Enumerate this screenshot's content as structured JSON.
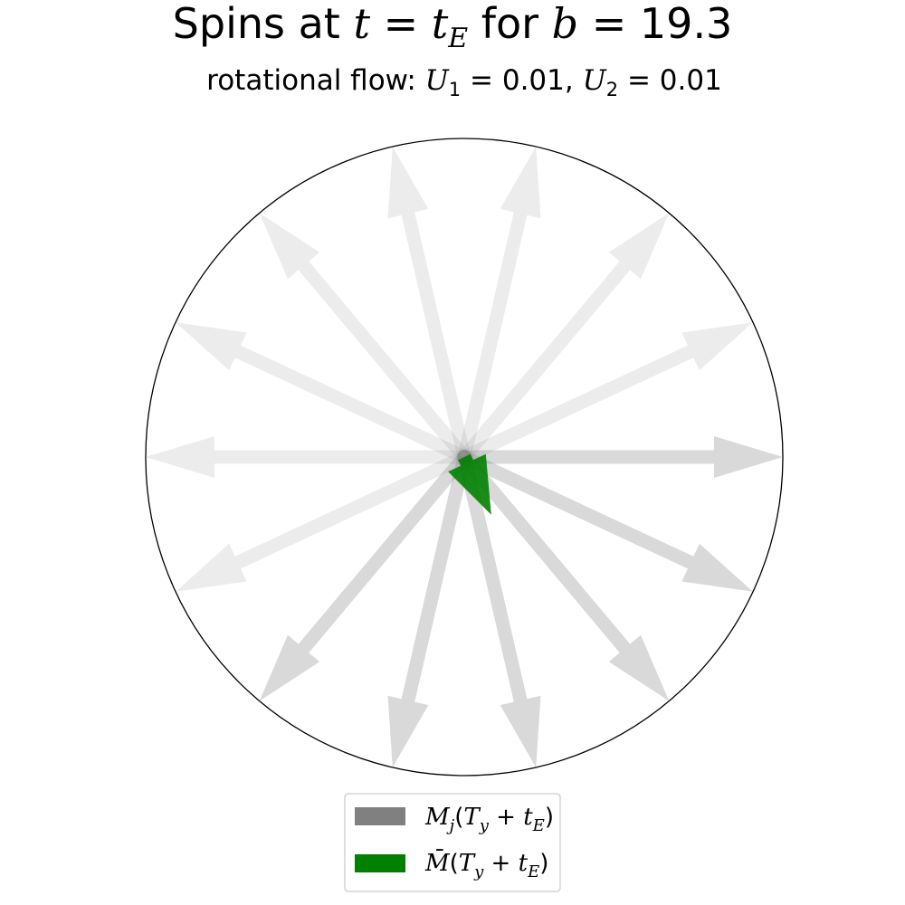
{
  "chart_data": {
    "type": "polar-quiver",
    "title": "Spins at t = t_E for b = 19.3",
    "subtitle": "rotational flow: U_1 = 0.01, U_2 = 0.01",
    "title_parts": {
      "prefix": "Spins at ",
      "t": "t",
      "eq1": " = ",
      "tE_base": "t",
      "tE_sub": "E",
      "mid": " for ",
      "b": "b",
      "eq2": " = ",
      "bval": "19.3"
    },
    "subtitle_parts": {
      "prefix": "rotational flow: ",
      "U": "U",
      "sub1": "1",
      "eq": " = ",
      "val1": "0.01",
      "sep": ", ",
      "sub2": "2",
      "val2": "0.01"
    },
    "spins": [
      {
        "angle_deg": 0,
        "length": 1.0,
        "alpha": 0.3
      },
      {
        "angle_deg": 25,
        "length": 1.0,
        "alpha": 0.15
      },
      {
        "angle_deg": 50,
        "length": 1.0,
        "alpha": 0.15
      },
      {
        "angle_deg": 77,
        "length": 1.0,
        "alpha": 0.15
      },
      {
        "angle_deg": 103,
        "length": 1.0,
        "alpha": 0.15
      },
      {
        "angle_deg": 130,
        "length": 1.0,
        "alpha": 0.15
      },
      {
        "angle_deg": 155,
        "length": 1.0,
        "alpha": 0.15
      },
      {
        "angle_deg": 180,
        "length": 1.0,
        "alpha": 0.15
      },
      {
        "angle_deg": 205,
        "length": 1.0,
        "alpha": 0.15
      },
      {
        "angle_deg": 230,
        "length": 1.0,
        "alpha": 0.3
      },
      {
        "angle_deg": 257,
        "length": 1.0,
        "alpha": 0.3
      },
      {
        "angle_deg": 283,
        "length": 1.0,
        "alpha": 0.3
      },
      {
        "angle_deg": 310,
        "length": 1.0,
        "alpha": 0.3
      },
      {
        "angle_deg": 335,
        "length": 1.0,
        "alpha": 0.3
      }
    ],
    "mean_spin": {
      "angle_deg": 295,
      "length": 0.2
    },
    "spin_color": "#808080",
    "mean_color": "#008000",
    "circle_color": "#000000",
    "legend": {
      "placement": "bottom-center",
      "entries": [
        {
          "label": "M_j(T_y + t_E)",
          "base": "M",
          "sub": "j",
          "open": "(",
          "T": "T",
          "Tsub": "y",
          "plus": " + ",
          "t": "t",
          "tsub": "E",
          "close": ")",
          "color": "#808080"
        },
        {
          "label": "M̄(T_y + t_E)",
          "base": "M̄",
          "sub": "",
          "open": "(",
          "T": "T",
          "Tsub": "y",
          "plus": " + ",
          "t": "t",
          "tsub": "E",
          "close": ")",
          "color": "#008000"
        }
      ]
    }
  }
}
